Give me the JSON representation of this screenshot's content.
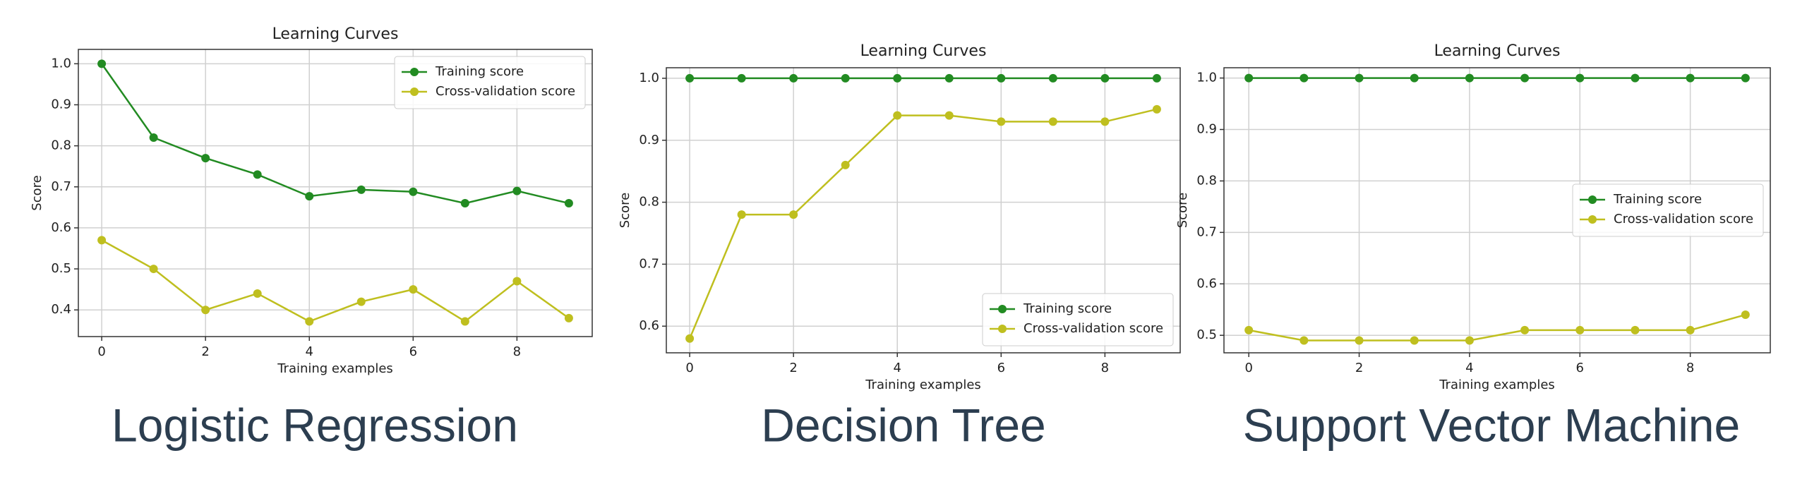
{
  "chart_data": [
    {
      "type": "line",
      "title": "Learning Curves",
      "xlabel": "Training examples",
      "ylabel": "Score",
      "caption": "Logistic Regression",
      "x": [
        0,
        1,
        2,
        3,
        4,
        5,
        6,
        7,
        8,
        9
      ],
      "series": [
        {
          "name": "Training score",
          "color": "#228b22",
          "values": [
            1.0,
            0.82,
            0.77,
            0.73,
            0.677,
            0.693,
            0.688,
            0.66,
            0.69,
            0.66
          ]
        },
        {
          "name": "Cross-validation score",
          "color": "#bfbf1f",
          "values": [
            0.57,
            0.5,
            0.4,
            0.44,
            0.372,
            0.42,
            0.45,
            0.372,
            0.47,
            0.38
          ]
        }
      ],
      "xlim": [
        -0.45,
        9.45
      ],
      "ylim": [
        0.335,
        1.035
      ],
      "xticks": [
        0,
        2,
        4,
        6,
        8
      ],
      "yticks": [
        0.4,
        0.5,
        0.6,
        0.7,
        0.8,
        0.9,
        {
          "value": 1,
          "label": "1.0"
        }
      ],
      "grid": true,
      "legend": "upper right"
    },
    {
      "type": "line",
      "title": "Learning Curves",
      "xlabel": "Training examples",
      "ylabel": "Score",
      "caption": "Decision Tree",
      "x": [
        0,
        1,
        2,
        3,
        4,
        5,
        6,
        7,
        8,
        9
      ],
      "series": [
        {
          "name": "Training score",
          "color": "#228b22",
          "values": [
            1.0,
            1.0,
            1.0,
            1.0,
            1.0,
            1.0,
            1.0,
            1.0,
            1.0,
            1.0
          ]
        },
        {
          "name": "Cross-validation score",
          "color": "#bfbf1f",
          "values": [
            0.58,
            0.78,
            0.78,
            0.86,
            0.94,
            0.94,
            0.93,
            0.93,
            0.93,
            0.95
          ]
        }
      ],
      "xlim": [
        -0.45,
        9.45
      ],
      "ylim": [
        0.557,
        1.017
      ],
      "xticks": [
        0,
        2,
        4,
        6,
        8
      ],
      "yticks": [
        0.6,
        0.7,
        0.8,
        0.9,
        {
          "value": 1,
          "label": "1.0"
        }
      ],
      "grid": true,
      "legend": "lower right"
    },
    {
      "type": "line",
      "title": "Learning Curves",
      "xlabel": "Training examples",
      "ylabel": "Score",
      "caption": "Support Vector Machine",
      "x": [
        0,
        1,
        2,
        3,
        4,
        5,
        6,
        7,
        8,
        9
      ],
      "series": [
        {
          "name": "Training score",
          "color": "#228b22",
          "values": [
            1.0,
            1.0,
            1.0,
            1.0,
            1.0,
            1.0,
            1.0,
            1.0,
            1.0,
            1.0
          ]
        },
        {
          "name": "Cross-validation score",
          "color": "#bfbf1f",
          "values": [
            0.51,
            0.49,
            0.49,
            0.49,
            0.49,
            0.51,
            0.51,
            0.51,
            0.51,
            0.54
          ]
        }
      ],
      "xlim": [
        -0.45,
        9.45
      ],
      "ylim": [
        0.466,
        1.02
      ],
      "xticks": [
        0,
        2,
        4,
        6,
        8
      ],
      "yticks": [
        0.5,
        0.6,
        0.7,
        0.8,
        0.9,
        {
          "value": 1,
          "label": "1.0"
        }
      ],
      "grid": true,
      "legend": "center right"
    }
  ]
}
